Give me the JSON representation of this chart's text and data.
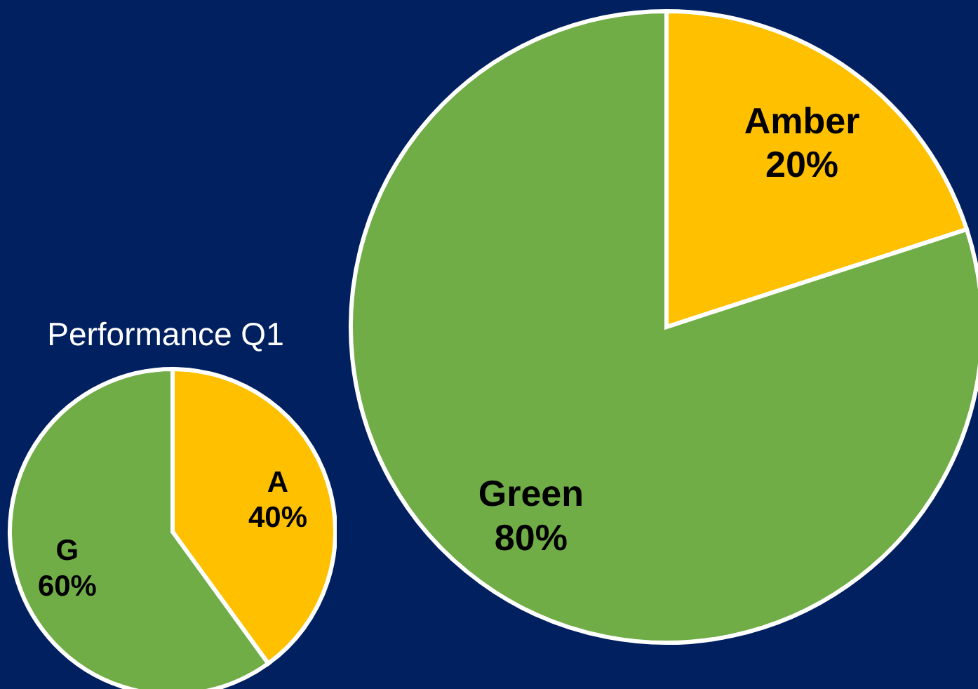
{
  "chart_data": [
    {
      "type": "pie",
      "title": "Performance Q1",
      "categories": [
        "A",
        "G"
      ],
      "values": [
        40,
        60
      ],
      "colors": [
        "#ffc000",
        "#70ad47"
      ],
      "value_labels": [
        "40%",
        "60%"
      ]
    },
    {
      "type": "pie",
      "categories": [
        "Amber",
        "Green"
      ],
      "values": [
        20,
        80
      ],
      "colors": [
        "#ffc000",
        "#70ad47"
      ],
      "value_labels": [
        "20%",
        "80%"
      ]
    }
  ]
}
